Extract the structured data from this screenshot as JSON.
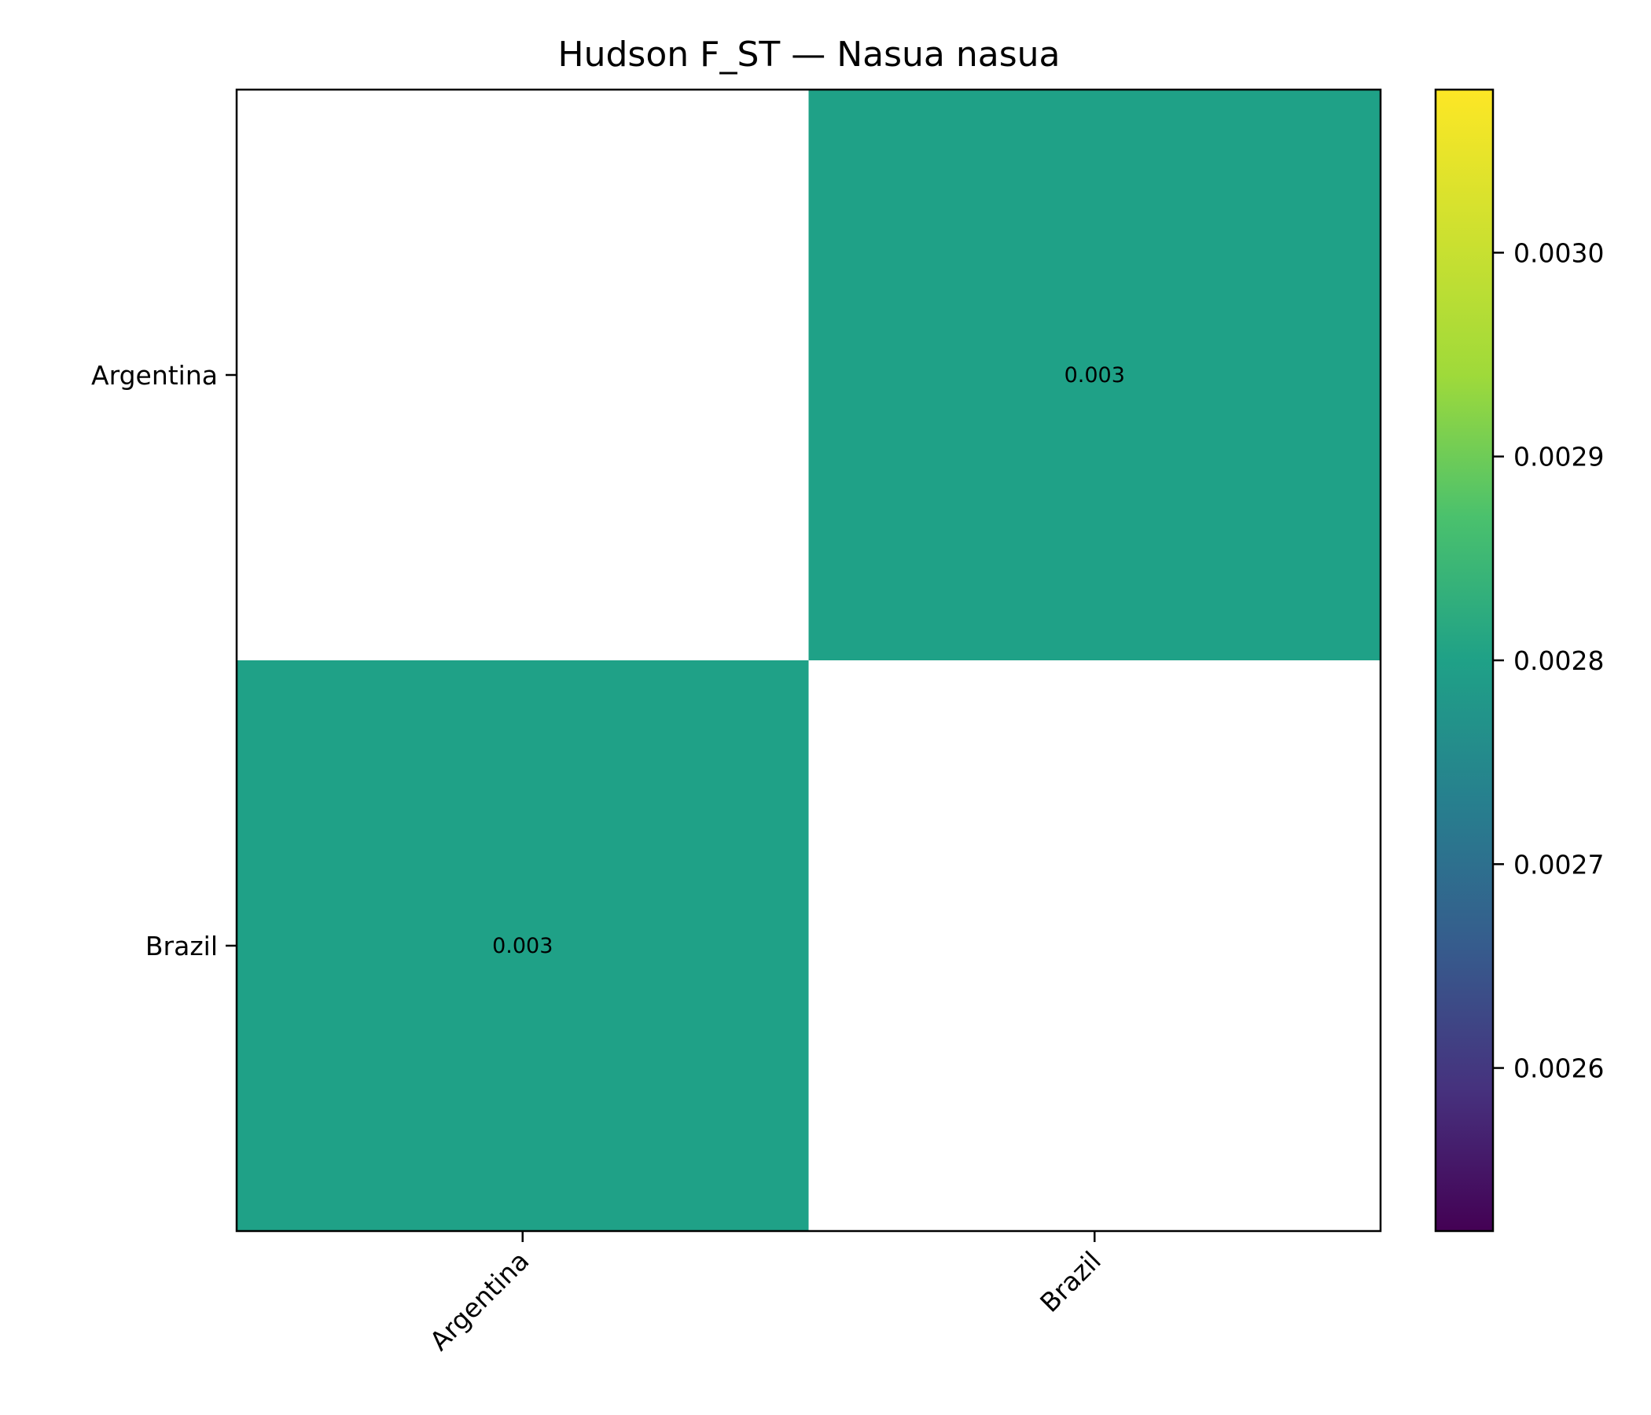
{
  "chart_data": {
    "type": "heatmap",
    "title": "Hudson F_ST — Nasua nasua",
    "row_labels": [
      "Argentina",
      "Brazil"
    ],
    "col_labels": [
      "Argentina",
      "Brazil"
    ],
    "values": [
      [
        null,
        0.0028
      ],
      [
        0.0028,
        null
      ]
    ],
    "cell_labels": [
      [
        "",
        "0.003"
      ],
      [
        "0.003",
        ""
      ]
    ],
    "colormap": "viridis",
    "missing_color": "#ffffff",
    "colorbar": {
      "range": [
        0.00252,
        0.00308
      ],
      "ticks": [
        0.0026,
        0.0027,
        0.0028,
        0.0029,
        0.003
      ],
      "tick_labels": [
        "0.0026",
        "0.0027",
        "0.0028",
        "0.0029",
        "0.0030"
      ]
    }
  }
}
